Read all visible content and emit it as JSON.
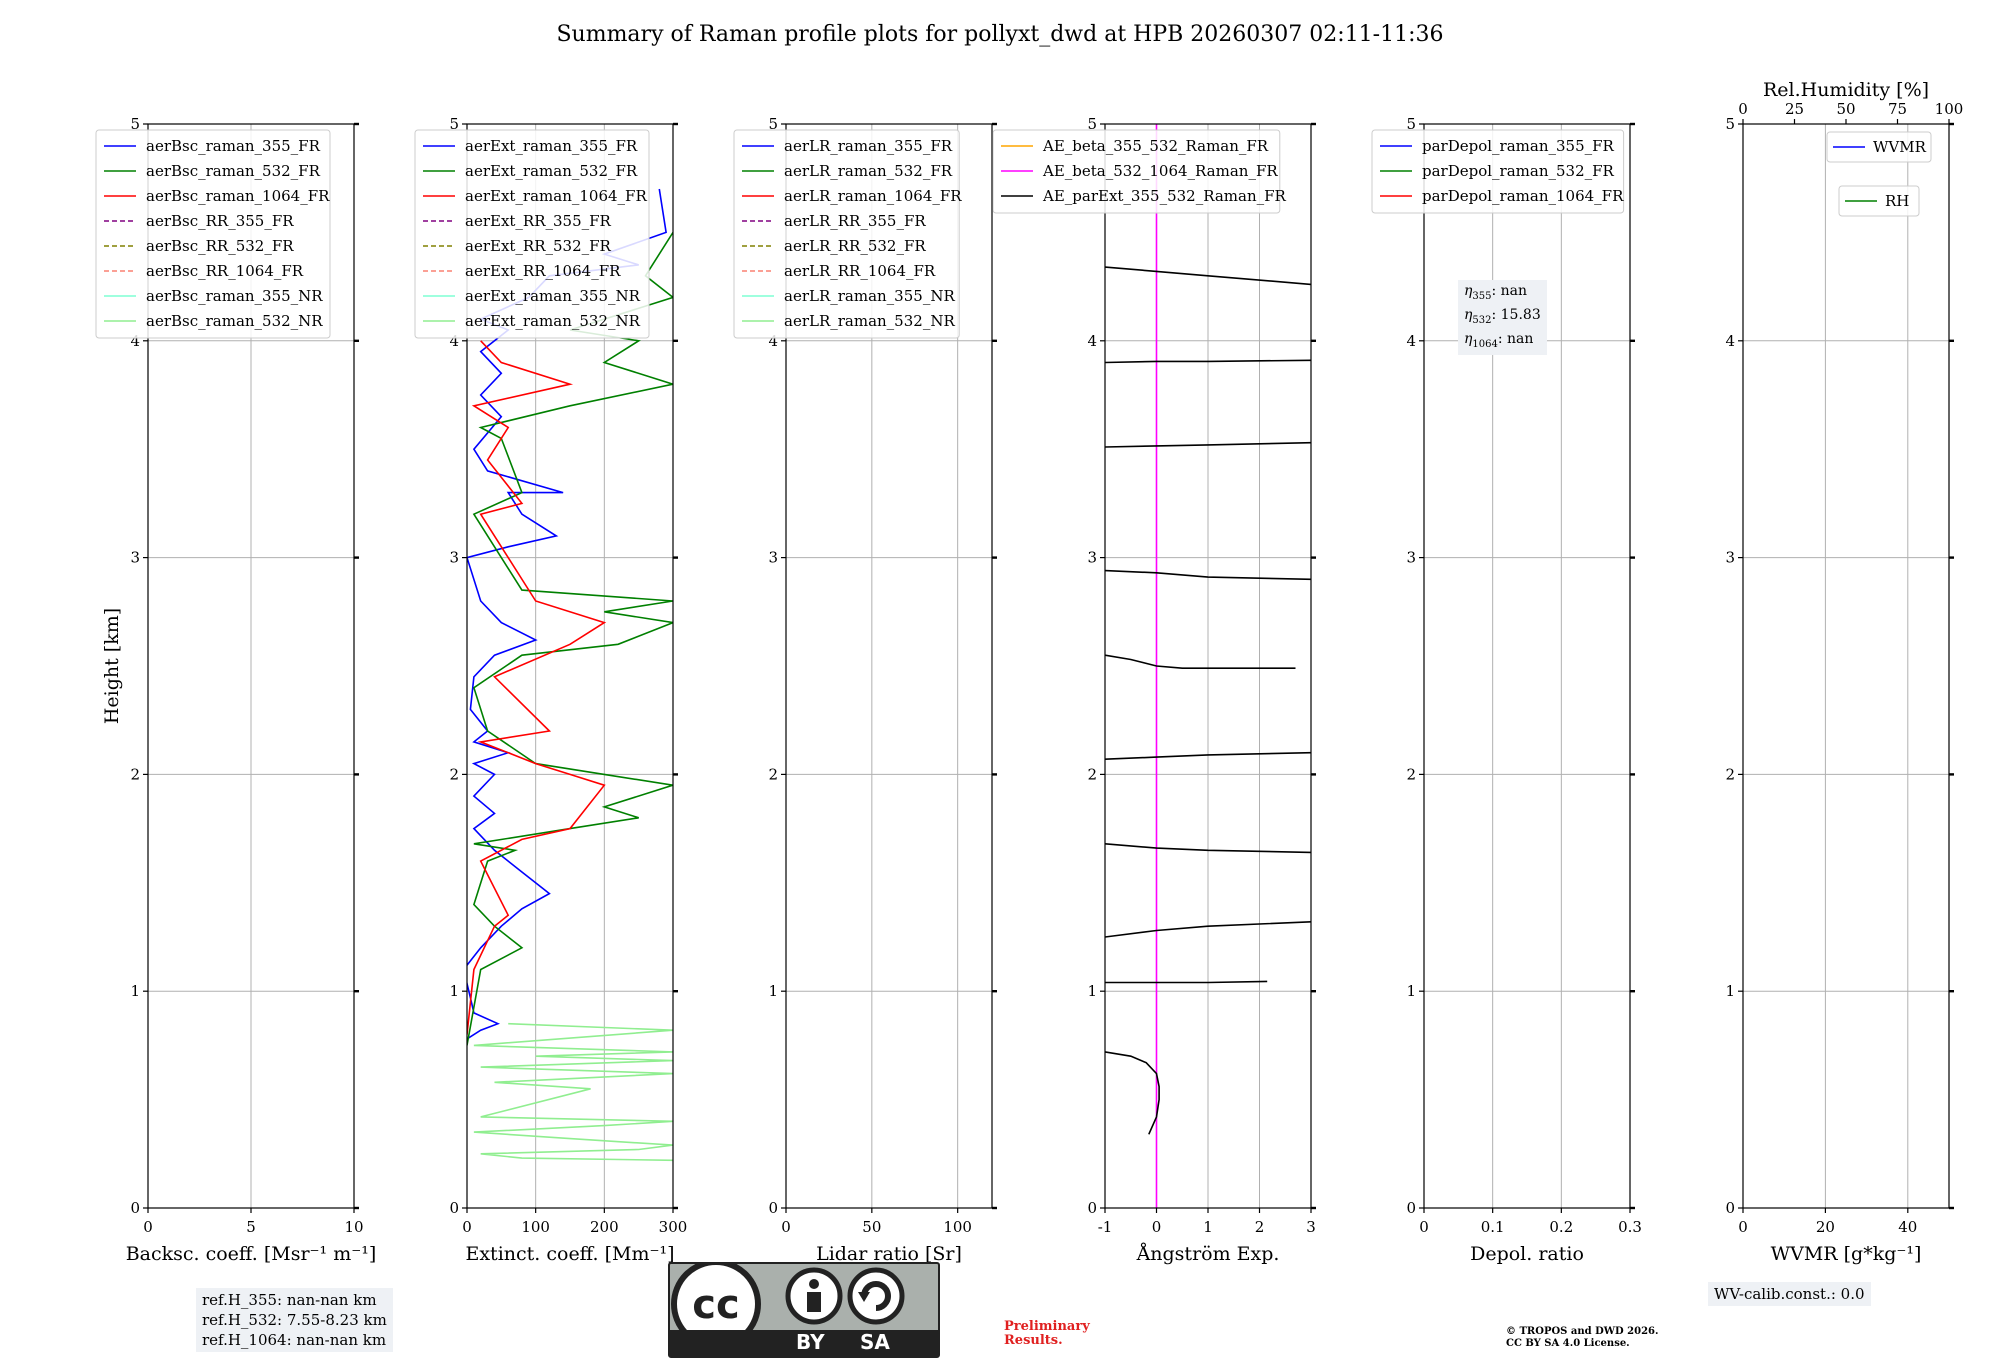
{
  "figure_title": "Summary of Raman profile plots for pollyxt_dwd at HPB 20260307 02:11-11:36",
  "ref_heights": [
    "ref.H_355: nan-nan km",
    "ref.H_532: 7.55-8.23 km",
    "ref.H_1064: nan-nan km"
  ],
  "eta_box": {
    "eta355": ": nan",
    "eta532": ": 15.83",
    "eta1064": ": nan"
  },
  "wv_calib": "WV-calib.const.: 0.0",
  "license_labels": {
    "by": "BY",
    "sa": "SA",
    "cc": "cc"
  },
  "preliminary": [
    "Preliminary",
    "Results."
  ],
  "copyright": [
    "© TROPOS and DWD 2026.",
    "CC BY SA 4.0 License."
  ],
  "colors": {
    "blue": "#0000ff",
    "green": "#008000",
    "red": "#ff0000",
    "purple": "#800080",
    "olive": "#808000",
    "salmon": "#fa8072",
    "cyan": "#7fffd4",
    "lightgreen": "#90ee90",
    "orange": "#ffa500",
    "magenta": "#ff00ff",
    "black": "#000000",
    "gray": "#b0b0b0"
  },
  "chart_data": [
    {
      "type": "line",
      "xlabel": "Backsc. coeff. [Msr⁻¹ m⁻¹]",
      "ylabel": "Height [km]",
      "xlim": [
        0,
        10
      ],
      "ylim": [
        0,
        5
      ],
      "xticks": [
        0,
        5,
        10
      ],
      "yticks": [
        0,
        1,
        2,
        3,
        4,
        5
      ],
      "legend": "upper-left",
      "series": [
        {
          "name": "aerBsc_raman_355_FR",
          "color": "blue",
          "dash": false,
          "points": []
        },
        {
          "name": "aerBsc_raman_532_FR",
          "color": "green",
          "dash": false,
          "points": []
        },
        {
          "name": "aerBsc_raman_1064_FR",
          "color": "red",
          "dash": false,
          "points": []
        },
        {
          "name": "aerBsc_RR_355_FR",
          "color": "purple",
          "dash": true,
          "points": []
        },
        {
          "name": "aerBsc_RR_532_FR",
          "color": "olive",
          "dash": true,
          "points": []
        },
        {
          "name": "aerBsc_RR_1064_FR",
          "color": "salmon",
          "dash": true,
          "points": []
        },
        {
          "name": "aerBsc_raman_355_NR",
          "color": "cyan",
          "dash": false,
          "points": []
        },
        {
          "name": "aerBsc_raman_532_NR",
          "color": "lightgreen",
          "dash": false,
          "points": []
        }
      ]
    },
    {
      "type": "line",
      "xlabel": "Extinct. coeff. [Mm⁻¹]",
      "ylabel": "",
      "xlim": [
        0,
        300
      ],
      "ylim": [
        0,
        5
      ],
      "xticks": [
        0,
        100,
        200,
        300
      ],
      "yticks": [
        0,
        1,
        2,
        3,
        4,
        5
      ],
      "legend": "upper-left",
      "series": [
        {
          "name": "aerExt_raman_355_FR",
          "color": "blue",
          "dash": false,
          "points": [
            [
              0,
              0.78
            ],
            [
              20,
              0.82
            ],
            [
              45,
              0.85
            ],
            [
              10,
              0.9
            ],
            [
              5,
              0.97
            ],
            [
              -5,
              1.1
            ],
            [
              20,
              1.2
            ],
            [
              50,
              1.3
            ],
            [
              80,
              1.38
            ],
            [
              120,
              1.45
            ],
            [
              80,
              1.55
            ],
            [
              40,
              1.65
            ],
            [
              10,
              1.75
            ],
            [
              40,
              1.82
            ],
            [
              10,
              1.9
            ],
            [
              40,
              2.0
            ],
            [
              10,
              2.05
            ],
            [
              60,
              2.1
            ],
            [
              10,
              2.15
            ],
            [
              30,
              2.2
            ],
            [
              5,
              2.3
            ],
            [
              10,
              2.45
            ],
            [
              40,
              2.55
            ],
            [
              100,
              2.62
            ],
            [
              50,
              2.7
            ],
            [
              20,
              2.8
            ],
            [
              0,
              3.0
            ],
            [
              60,
              3.05
            ],
            [
              130,
              3.1
            ],
            [
              80,
              3.2
            ],
            [
              60,
              3.3
            ],
            [
              140,
              3.3
            ],
            [
              30,
              3.4
            ],
            [
              10,
              3.5
            ],
            [
              50,
              3.65
            ],
            [
              20,
              3.75
            ],
            [
              50,
              3.85
            ],
            [
              20,
              3.95
            ],
            [
              60,
              4.05
            ],
            [
              20,
              4.1
            ],
            [
              90,
              4.2
            ],
            [
              120,
              4.3
            ],
            [
              250,
              4.35
            ],
            [
              200,
              4.4
            ],
            [
              290,
              4.5
            ],
            [
              280,
              4.7
            ]
          ]
        },
        {
          "name": "aerExt_raman_532_FR",
          "color": "green",
          "dash": false,
          "points": [
            [
              0,
              0.75
            ],
            [
              20,
              1.1
            ],
            [
              80,
              1.2
            ],
            [
              40,
              1.3
            ],
            [
              10,
              1.4
            ],
            [
              30,
              1.6
            ],
            [
              70,
              1.65
            ],
            [
              10,
              1.68
            ],
            [
              150,
              1.75
            ],
            [
              250,
              1.8
            ],
            [
              200,
              1.85
            ],
            [
              300,
              1.95
            ],
            [
              200,
              2.0
            ],
            [
              100,
              2.05
            ],
            [
              30,
              2.2
            ],
            [
              10,
              2.4
            ],
            [
              80,
              2.55
            ],
            [
              220,
              2.6
            ],
            [
              300,
              2.7
            ],
            [
              200,
              2.75
            ],
            [
              300,
              2.8
            ],
            [
              80,
              2.85
            ],
            [
              10,
              3.2
            ],
            [
              80,
              3.3
            ],
            [
              50,
              3.55
            ],
            [
              20,
              3.6
            ],
            [
              150,
              3.7
            ],
            [
              300,
              3.8
            ],
            [
              200,
              3.9
            ],
            [
              250,
              4.0
            ],
            [
              150,
              4.05
            ],
            [
              300,
              4.2
            ],
            [
              260,
              4.3
            ],
            [
              300,
              4.5
            ]
          ]
        },
        {
          "name": "aerExt_raman_1064_FR",
          "color": "red",
          "dash": false,
          "points": [
            [
              0,
              0.8
            ],
            [
              10,
              1.1
            ],
            [
              40,
              1.3
            ],
            [
              60,
              1.35
            ],
            [
              20,
              1.6
            ],
            [
              80,
              1.7
            ],
            [
              150,
              1.75
            ],
            [
              200,
              1.95
            ],
            [
              150,
              2.0
            ],
            [
              100,
              2.05
            ],
            [
              20,
              2.15
            ],
            [
              120,
              2.2
            ],
            [
              40,
              2.45
            ],
            [
              150,
              2.6
            ],
            [
              200,
              2.7
            ],
            [
              100,
              2.8
            ],
            [
              20,
              3.2
            ],
            [
              80,
              3.25
            ],
            [
              30,
              3.45
            ],
            [
              60,
              3.6
            ],
            [
              10,
              3.7
            ],
            [
              150,
              3.8
            ],
            [
              50,
              3.9
            ],
            [
              20,
              4.0
            ]
          ]
        },
        {
          "name": "aerExt_RR_355_FR",
          "color": "purple",
          "dash": true,
          "points": []
        },
        {
          "name": "aerExt_RR_532_FR",
          "color": "olive",
          "dash": true,
          "points": []
        },
        {
          "name": "aerExt_RR_1064_FR",
          "color": "salmon",
          "dash": true,
          "points": []
        },
        {
          "name": "aerExt_raman_355_NR",
          "color": "cyan",
          "dash": false,
          "points": []
        },
        {
          "name": "aerExt_raman_532_NR",
          "color": "lightgreen",
          "dash": false,
          "points": [
            [
              300,
              0.22
            ],
            [
              80,
              0.23
            ],
            [
              20,
              0.25
            ],
            [
              250,
              0.27
            ],
            [
              300,
              0.29
            ],
            [
              150,
              0.32
            ],
            [
              10,
              0.35
            ],
            [
              200,
              0.38
            ],
            [
              300,
              0.4
            ],
            [
              20,
              0.42
            ],
            [
              180,
              0.55
            ],
            [
              40,
              0.58
            ],
            [
              300,
              0.62
            ],
            [
              20,
              0.65
            ],
            [
              300,
              0.68
            ],
            [
              100,
              0.7
            ],
            [
              300,
              0.72
            ],
            [
              10,
              0.75
            ],
            [
              300,
              0.82
            ],
            [
              60,
              0.85
            ]
          ]
        }
      ]
    },
    {
      "type": "line",
      "xlabel": "Lidar ratio [Sr]",
      "ylabel": "",
      "xlim": [
        0,
        120
      ],
      "ylim": [
        0,
        5
      ],
      "xticks": [
        0,
        50,
        100
      ],
      "yticks": [
        0,
        1,
        2,
        3,
        4,
        5
      ],
      "legend": "upper-left",
      "series": [
        {
          "name": "aerLR_raman_355_FR",
          "color": "blue",
          "dash": false,
          "points": []
        },
        {
          "name": "aerLR_raman_532_FR",
          "color": "green",
          "dash": false,
          "points": []
        },
        {
          "name": "aerLR_raman_1064_FR",
          "color": "red",
          "dash": false,
          "points": []
        },
        {
          "name": "aerLR_RR_355_FR",
          "color": "purple",
          "dash": true,
          "points": []
        },
        {
          "name": "aerLR_RR_532_FR",
          "color": "olive",
          "dash": true,
          "points": []
        },
        {
          "name": "aerLR_RR_1064_FR",
          "color": "salmon",
          "dash": true,
          "points": []
        },
        {
          "name": "aerLR_raman_355_NR",
          "color": "cyan",
          "dash": false,
          "points": []
        },
        {
          "name": "aerLR_raman_532_NR",
          "color": "lightgreen",
          "dash": false,
          "points": []
        }
      ]
    },
    {
      "type": "line",
      "xlabel": "Ångström Exp.",
      "ylabel": "",
      "xlim": [
        -1,
        3
      ],
      "ylim": [
        0,
        5
      ],
      "xticks": [
        -1,
        0,
        1,
        2,
        3
      ],
      "yticks": [
        0,
        1,
        2,
        3,
        4,
        5
      ],
      "legend": "upper-left",
      "series": [
        {
          "name": "AE_beta_355_532_Raman_FR",
          "color": "orange",
          "dash": false,
          "points": []
        },
        {
          "name": "AE_beta_532_1064_Raman_FR",
          "color": "magenta",
          "dash": false,
          "points": [
            [
              0,
              0
            ],
            [
              0,
              5
            ]
          ]
        },
        {
          "name": "AE_parExt_355_532_Raman_FR",
          "color": "black",
          "dash": false,
          "segments": [
            [
              [
                -0.15,
                0.34
              ],
              [
                0.0,
                0.42
              ],
              [
                0.05,
                0.5
              ],
              [
                0.05,
                0.56
              ],
              [
                0.0,
                0.62
              ],
              [
                -0.2,
                0.67
              ],
              [
                -0.5,
                0.7
              ],
              [
                -1,
                0.72
              ]
            ],
            [
              [
                -1,
                1.04
              ],
              [
                0,
                1.04
              ],
              [
                1,
                1.04
              ],
              [
                2.15,
                1.045
              ]
            ],
            [
              [
                -1,
                1.25
              ],
              [
                0,
                1.28
              ],
              [
                1,
                1.3
              ],
              [
                3,
                1.32
              ]
            ],
            [
              [
                -1,
                1.68
              ],
              [
                0,
                1.66
              ],
              [
                1,
                1.65
              ],
              [
                3,
                1.64
              ]
            ],
            [
              [
                -1,
                2.07
              ],
              [
                0,
                2.08
              ],
              [
                1,
                2.09
              ],
              [
                3,
                2.1
              ]
            ],
            [
              [
                -1,
                2.55
              ],
              [
                -0.5,
                2.53
              ],
              [
                0,
                2.5
              ],
              [
                0.5,
                2.49
              ],
              [
                2.7,
                2.49
              ]
            ],
            [
              [
                -1,
                2.94
              ],
              [
                0,
                2.93
              ],
              [
                1,
                2.91
              ],
              [
                3,
                2.9
              ]
            ],
            [
              [
                -1,
                3.51
              ],
              [
                0,
                3.515
              ],
              [
                1,
                3.52
              ],
              [
                3,
                3.53
              ]
            ],
            [
              [
                -1,
                3.9
              ],
              [
                0,
                3.905
              ],
              [
                1,
                3.905
              ],
              [
                3,
                3.91
              ]
            ],
            [
              [
                -1,
                4.34
              ],
              [
                0,
                4.32
              ],
              [
                1,
                4.3
              ],
              [
                3,
                4.26
              ]
            ]
          ]
        }
      ]
    },
    {
      "type": "line",
      "xlabel": "Depol. ratio",
      "ylabel": "",
      "xlim": [
        0,
        0.3
      ],
      "ylim": [
        0,
        5
      ],
      "xticks": [
        0.0,
        0.1,
        0.2,
        0.3
      ],
      "yticks": [
        0,
        1,
        2,
        3,
        4,
        5
      ],
      "legend": "upper-left",
      "series": [
        {
          "name": "parDepol_raman_355_FR",
          "color": "blue",
          "dash": false,
          "points": []
        },
        {
          "name": "parDepol_raman_532_FR",
          "color": "green",
          "dash": false,
          "points": []
        },
        {
          "name": "parDepol_raman_1064_FR",
          "color": "red",
          "dash": false,
          "points": []
        }
      ]
    },
    {
      "type": "line",
      "xlabel": "WVMR [g*kg⁻¹]",
      "x2label": "Rel.Humidity [%]",
      "ylabel": "",
      "xlim": [
        0,
        50
      ],
      "x2lim": [
        0,
        100
      ],
      "ylim": [
        0,
        5
      ],
      "xticks": [
        0,
        20,
        40
      ],
      "x2ticks": [
        0,
        25,
        50,
        75,
        100
      ],
      "yticks": [
        0,
        1,
        2,
        3,
        4,
        5
      ],
      "legend": "upper-right",
      "series": [
        {
          "name": "WVMR",
          "color": "blue",
          "dash": false,
          "points": []
        },
        {
          "name": "RH",
          "color": "green",
          "dash": false,
          "points": []
        }
      ]
    }
  ]
}
